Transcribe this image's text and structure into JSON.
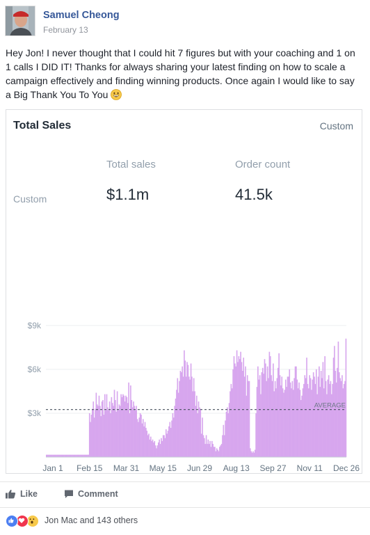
{
  "post": {
    "author": "Samuel Cheong",
    "date": "February 13",
    "message": "Hey Jon! I never thought that I could hit 7 figures but with your coaching and 1 on 1 calls I DID IT! Thanks for always sharing your latest finding on how to scale a campaign effectively and finding winning products. Once again I would like to say a Big Thank You To You"
  },
  "card": {
    "title": "Total Sales",
    "range": "Custom",
    "side_label": "Custom",
    "metrics": [
      {
        "label": "Total sales",
        "value": "$1.1m"
      },
      {
        "label": "Order count",
        "value": "41.5k"
      }
    ]
  },
  "chart_data": {
    "type": "bar",
    "x_tick_labels": [
      "Jan 1",
      "Feb 15",
      "Mar 31",
      "May 15",
      "Jun 29",
      "Aug 13",
      "Sep 27",
      "Nov 11",
      "Dec 26"
    ],
    "y_tick_labels": [
      "$9k",
      "$6k",
      "$3k"
    ],
    "y_ticks": [
      9000,
      6000,
      3000
    ],
    "ylim": [
      0,
      9800
    ],
    "average_label": "AVERAGE",
    "average_value": 3250,
    "color": "#d7a6ee",
    "series": [
      {
        "values": [
          160,
          160,
          160,
          160,
          160,
          160,
          160,
          160,
          160,
          160,
          160,
          160,
          160,
          160,
          160,
          160,
          160,
          160,
          160,
          160,
          160,
          160,
          160,
          160,
          160,
          160,
          160,
          160,
          160,
          160,
          160,
          160,
          160,
          160,
          160,
          160,
          160,
          160,
          160,
          160,
          160,
          160,
          160,
          160,
          160,
          3000,
          2400,
          2900,
          3300,
          3800,
          2700,
          3300,
          4400,
          3600,
          3500,
          4200,
          3500,
          2800,
          3800,
          3900,
          2900,
          4300,
          3200,
          4300,
          3400,
          3200,
          3800,
          3000,
          4100,
          3700,
          3500,
          4600,
          3900,
          3100,
          4500,
          3200,
          3600,
          3500,
          4300,
          4100,
          4300,
          4200,
          3800,
          4200,
          4100,
          3700,
          5100,
          3000,
          4900,
          3900,
          3400,
          3800,
          3500,
          3200,
          3500,
          2600,
          2400,
          2700,
          3000,
          2900,
          2300,
          2600,
          2100,
          2400,
          2000,
          1800,
          1500,
          1600,
          1200,
          1400,
          1100,
          1200,
          1000,
          1100,
          800,
          600,
          800,
          1000,
          1200,
          900,
          1300,
          1100,
          1500,
          1500,
          1300,
          1900,
          1600,
          1800,
          2100,
          2400,
          2000,
          2500,
          3000,
          2700,
          3500,
          4000,
          4600,
          5400,
          4400,
          5200,
          5900,
          5800,
          6200,
          5500,
          7300,
          6600,
          5500,
          6500,
          6300,
          5500,
          5300,
          6400,
          5500,
          4500,
          5400,
          4500,
          3500,
          4200,
          3000,
          3800,
          3400,
          3300,
          1600,
          2700,
          1500,
          1300,
          900,
          1500,
          900,
          1200,
          900,
          1100,
          700,
          1100,
          900,
          700,
          700,
          400,
          600,
          500,
          400,
          700,
          800,
          900,
          1500,
          2200,
          1500,
          2500,
          3100,
          3400,
          3000,
          3700,
          4500,
          5000,
          4700,
          6000,
          6900,
          6400,
          6200,
          7300,
          6500,
          6900,
          6700,
          7200,
          6500,
          5900,
          6800,
          5500,
          6200,
          4200,
          5600,
          5200,
          5200,
          600,
          400,
          300,
          400,
          300,
          500,
          3000,
          4800,
          6200,
          5300,
          5600,
          4300,
          5800,
          6100,
          5700,
          6700,
          6400,
          5200,
          6200,
          5400,
          7200,
          6900,
          5600,
          5200,
          6400,
          4500,
          5200,
          4700,
          5400,
          6100,
          7100,
          5600,
          4900,
          5500,
          4700,
          4400,
          4600,
          5300,
          4800,
          5500,
          5500,
          6000,
          5100,
          4700,
          5200,
          4600,
          5400,
          6200,
          6200,
          5300,
          4700,
          5100,
          4600,
          3900,
          4200,
          4700,
          5000,
          5600,
          5400,
          6800,
          5000,
          4700,
          5600,
          5400,
          4600,
          5300,
          5800,
          5500,
          5000,
          6000,
          4300,
          5500,
          6200,
          4800,
          5900,
          5400,
          6500,
          4700,
          6900,
          5200,
          4300,
          5300,
          5600,
          5000,
          5200,
          4300,
          5000,
          6800,
          7600,
          5900,
          5100,
          6100,
          7900,
          5800,
          5400,
          5200,
          5600,
          4700,
          5000,
          5200,
          8100
        ]
      }
    ]
  },
  "actions": {
    "like": "Like",
    "comment": "Comment"
  },
  "reactions": {
    "summary": "Jon Mac and 143 others"
  }
}
